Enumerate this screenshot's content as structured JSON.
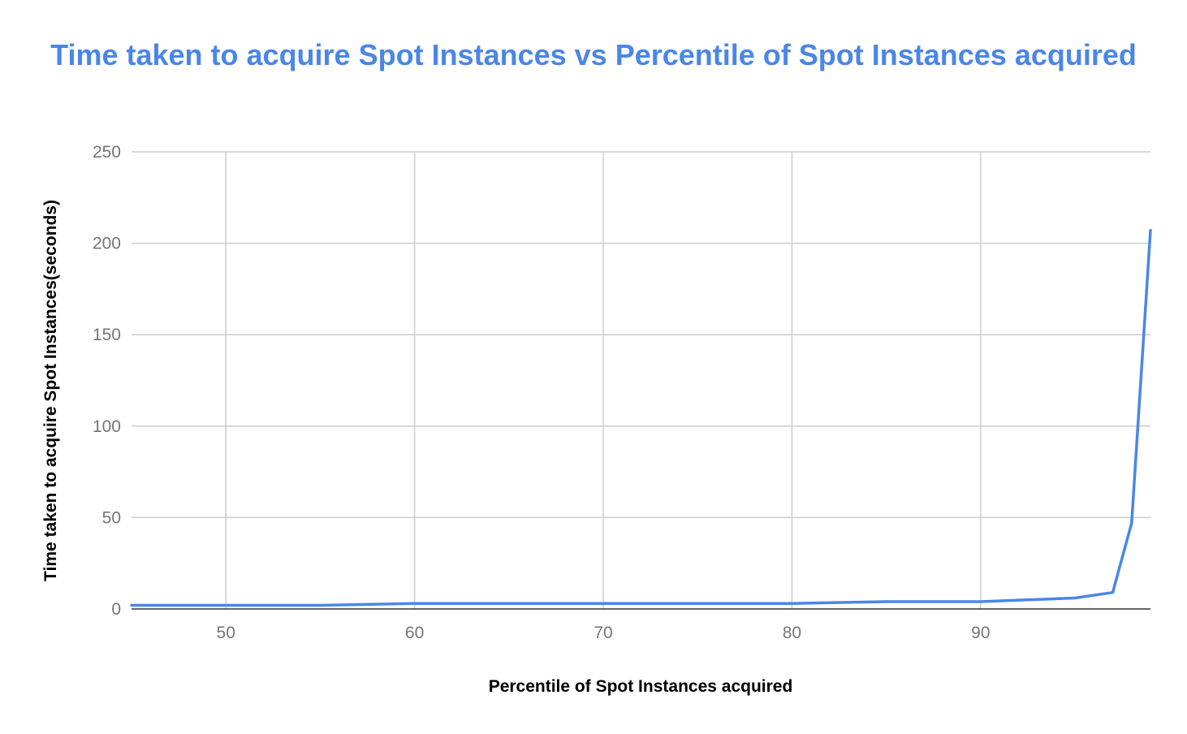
{
  "colors": {
    "title": "#4a86e8",
    "series": "#4a86e8",
    "grid": "#cccccc",
    "baseline": "#333333",
    "tick_text": "#757575",
    "axis_title_text": "#000000",
    "background": "#ffffff"
  },
  "chart_data": {
    "type": "line",
    "title": "Time taken to acquire Spot Instances vs Percentile of Spot Instances acquired",
    "xlabel": "Percentile of Spot Instances acquired",
    "ylabel": "Time taken to acquire Spot Instances(seconds)",
    "xlim": [
      45,
      99
    ],
    "ylim": [
      0,
      250
    ],
    "x_ticks": [
      50,
      60,
      70,
      80,
      90
    ],
    "y_ticks": [
      0,
      50,
      100,
      150,
      200,
      250
    ],
    "grid": true,
    "legend": "none",
    "series": [
      {
        "x": [
          45,
          50,
          55,
          60,
          65,
          70,
          75,
          80,
          85,
          90,
          95,
          97,
          98,
          99
        ],
        "y": [
          2,
          2,
          2,
          3,
          3,
          3,
          3,
          3,
          4,
          4,
          6,
          9,
          47,
          207
        ]
      }
    ]
  }
}
